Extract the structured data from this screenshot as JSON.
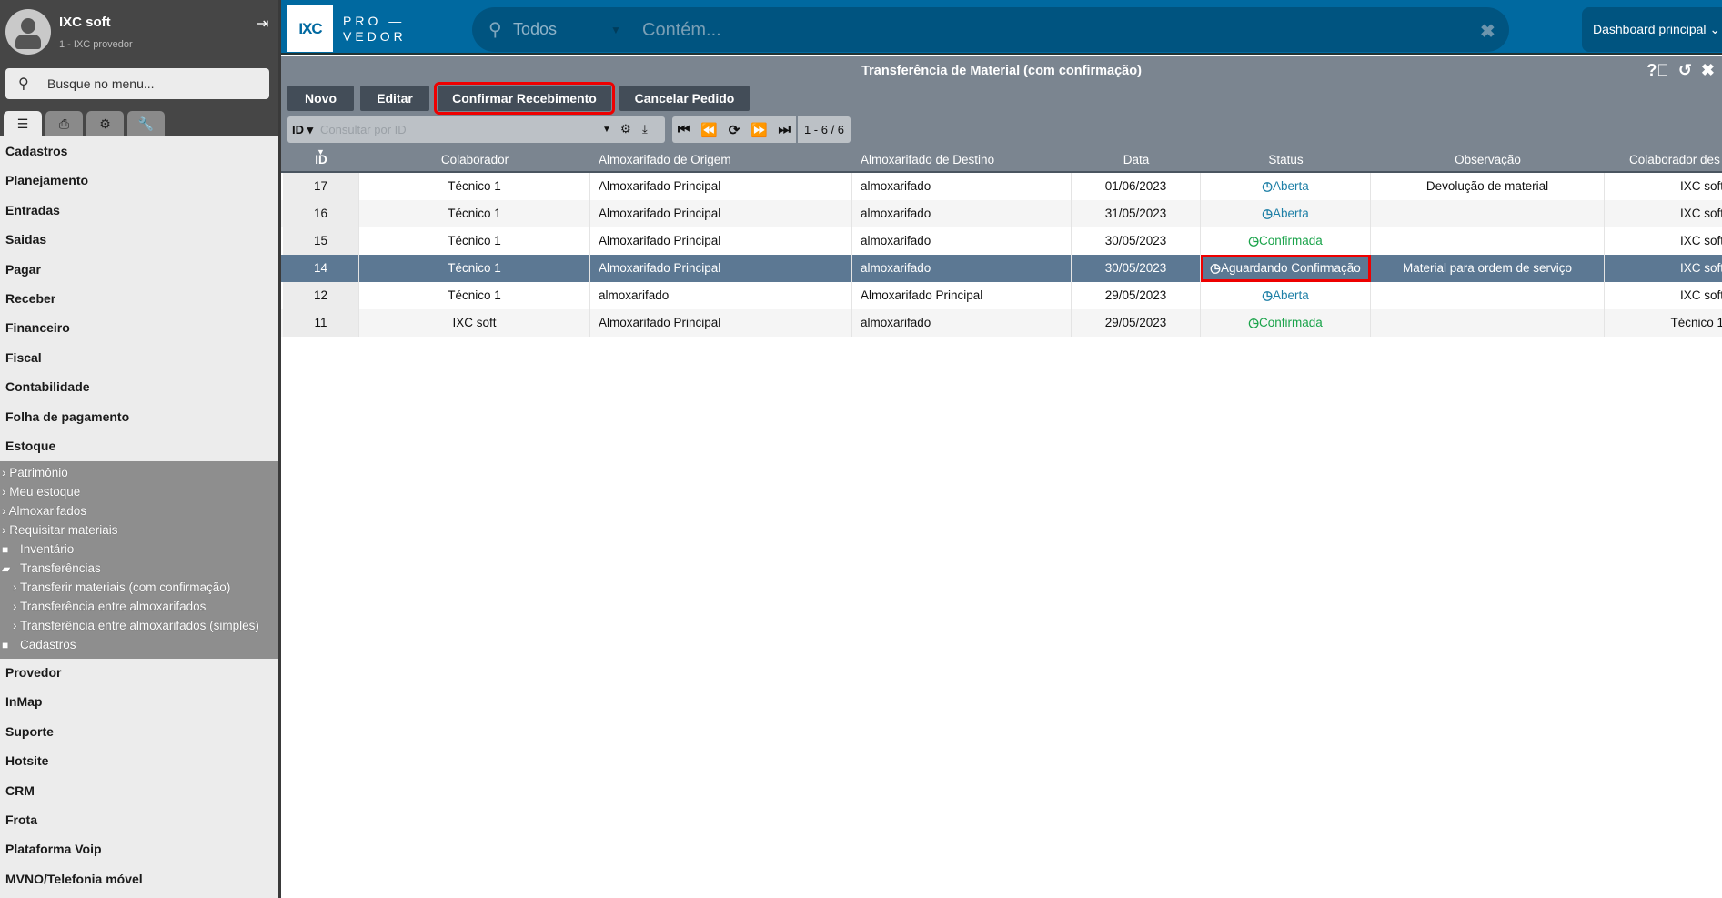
{
  "user": {
    "name": "IXC soft",
    "subtitle": "1 - IXC provedor"
  },
  "sidebar": {
    "search_placeholder": "Busque no menu...",
    "tabs": [
      "menu-icon",
      "print-icon",
      "gears-icon",
      "wrench-icon"
    ],
    "items_top": [
      "Cadastros",
      "Planejamento",
      "Entradas",
      "Saidas",
      "Pagar",
      "Receber",
      "Financeiro",
      "Fiscal",
      "Contabilidade",
      "Folha de pagamento",
      "Estoque"
    ],
    "estoque_sub": [
      {
        "label": "Patrimônio",
        "type": "link"
      },
      {
        "label": "Meu estoque",
        "type": "link"
      },
      {
        "label": "Almoxarifados",
        "type": "link"
      },
      {
        "label": "Requisitar materiais",
        "type": "link"
      },
      {
        "label": "Inventário",
        "type": "folder"
      },
      {
        "label": "Transferências",
        "type": "folder-open"
      },
      {
        "label": "Transferir materiais (com confirmação)",
        "type": "child"
      },
      {
        "label": "Transferência entre almoxarifados",
        "type": "child"
      },
      {
        "label": "Transferência entre almoxarifados (simples)",
        "type": "child"
      },
      {
        "label": "Cadastros",
        "type": "folder"
      }
    ],
    "items_bottom": [
      "Provedor",
      "InMap",
      "Suporte",
      "Hotsite",
      "CRM",
      "Frota",
      "Plataforma Voip",
      "MVNO/Telefonia móvel"
    ]
  },
  "topbar": {
    "logo": "IXC",
    "logo_text_1": "PRO —",
    "logo_text_2": "VEDOR",
    "search_scope": "Todos",
    "search_placeholder": "Contém...",
    "dashboard": "Dashboard principal"
  },
  "panel": {
    "title": "Transferência de Material (com confirmação)",
    "buttons": {
      "novo": "Novo",
      "editar": "Editar",
      "confirmar": "Confirmar Recebimento",
      "cancelar": "Cancelar Pedido"
    },
    "filter": {
      "field": "ID",
      "placeholder": "Consultar por ID"
    },
    "pagination": "1 - 6 / 6"
  },
  "table": {
    "columns": [
      "ID",
      "Colaborador",
      "Almoxarifado de Origem",
      "Almoxarifado de Destino",
      "Data",
      "Status",
      "Observação",
      "Colaborador des"
    ],
    "rows": [
      {
        "id": "17",
        "colab": "Técnico 1",
        "origem": "Almoxarifado Principal",
        "destino": "almoxarifado",
        "data": "01/06/2023",
        "status": "Aberta",
        "obs": "Devolução de material",
        "dest": "IXC soft"
      },
      {
        "id": "16",
        "colab": "Técnico 1",
        "origem": "Almoxarifado Principal",
        "destino": "almoxarifado",
        "data": "31/05/2023",
        "status": "Aberta",
        "obs": "",
        "dest": "IXC soft"
      },
      {
        "id": "15",
        "colab": "Técnico 1",
        "origem": "Almoxarifado Principal",
        "destino": "almoxarifado",
        "data": "30/05/2023",
        "status": "Confirmada",
        "obs": "",
        "dest": "IXC soft"
      },
      {
        "id": "14",
        "colab": "Técnico 1",
        "origem": "Almoxarifado Principal",
        "destino": "almoxarifado",
        "data": "30/05/2023",
        "status": "Aguardando Confirmação",
        "obs": "Material para ordem de serviço",
        "dest": "IXC soft",
        "selected": true
      },
      {
        "id": "12",
        "colab": "Técnico 1",
        "origem": "almoxarifado",
        "destino": "Almoxarifado Principal",
        "data": "29/05/2023",
        "status": "Aberta",
        "obs": "",
        "dest": "IXC soft"
      },
      {
        "id": "11",
        "colab": "IXC soft",
        "origem": "Almoxarifado Principal",
        "destino": "almoxarifado",
        "data": "29/05/2023",
        "status": "Confirmada",
        "obs": "",
        "dest": "Técnico 1"
      }
    ]
  },
  "colors": {
    "topbar": "#0069a0",
    "panel": "#7b8590",
    "selected_row": "#5c7893",
    "status_open": "#1d7fa6",
    "status_confirmed": "#1aa34a",
    "highlight": "#e00000"
  }
}
